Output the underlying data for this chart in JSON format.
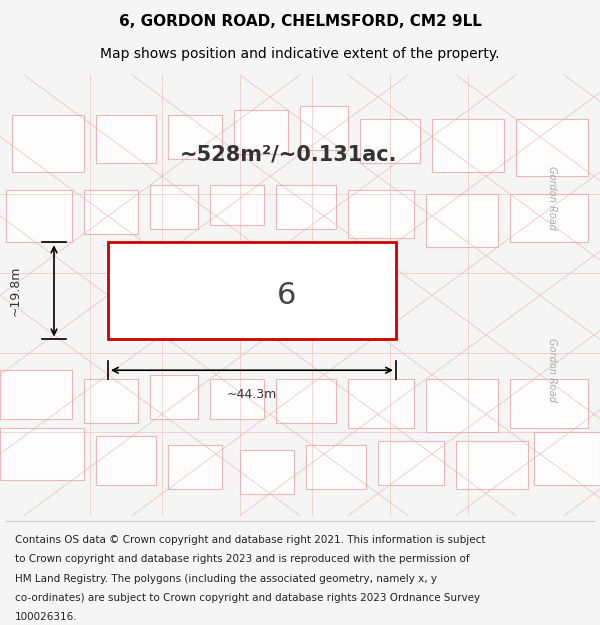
{
  "title_line1": "6, GORDON ROAD, CHELMSFORD, CM2 9LL",
  "title_line2": "Map shows position and indicative extent of the property.",
  "area_text": "~528m²/~0.131ac.",
  "property_number": "6",
  "width_label": "~44.3m",
  "height_label": "~19.8m",
  "footer_lines": [
    "Contains OS data © Crown copyright and database right 2021. This information is subject",
    "to Crown copyright and database rights 2023 and is reproduced with the permission of",
    "HM Land Registry. The polygons (including the associated geometry, namely x, y",
    "co-ordinates) are subject to Crown copyright and database rights 2023 Ordnance Survey",
    "100026316."
  ],
  "bg_color": "#f5f5f5",
  "map_bg": "#eeecec",
  "property_fill": "white",
  "property_edge": "#cc0000",
  "road_label": "Gordon Road",
  "grid_line_color": "#e8b0b0",
  "title_fontsize": 11,
  "subtitle_fontsize": 10,
  "footer_fontsize": 7.5
}
